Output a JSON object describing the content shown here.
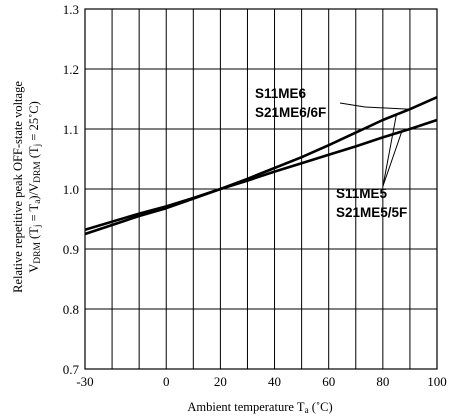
{
  "chart_data": {
    "type": "line",
    "xlim": [
      -30,
      100
    ],
    "ylim": [
      0.7,
      1.3
    ],
    "x_ticks": [
      -30,
      0,
      20,
      40,
      60,
      80,
      100
    ],
    "x_tick_labels": [
      "-30",
      "0",
      "20",
      "40",
      "60",
      "80",
      "100"
    ],
    "y_ticks": [
      0.7,
      0.8,
      0.9,
      1.0,
      1.1,
      1.2,
      1.3
    ],
    "y_tick_labels": [
      "0.7",
      "0.8",
      "0.9",
      "1.0",
      "1.1",
      "1.2",
      "1.3"
    ],
    "grid": true,
    "xlabel": {
      "main": "Ambient temperature T",
      "sub": "a",
      "unit": " (˚C)"
    },
    "ylabel": {
      "line1": "Relative repetitive peak OFF-state voltage",
      "l2_v1": "V",
      "l2_s1": "DRM",
      "l2_p1": " (T",
      "l2_s2": "j",
      "l2_p2": " = T",
      "l2_s3": "a",
      "l2_p3": ")/V",
      "l2_s4": "DRM",
      "l2_p4": " (T",
      "l2_s5": "j",
      "l2_p5": " = 25˚C)"
    },
    "series": [
      {
        "name": "S11ME6 S21ME6/6F",
        "x": [
          -30,
          -10,
          0,
          10,
          20,
          30,
          40,
          50,
          60,
          70,
          80,
          90,
          100
        ],
        "y": [
          0.925,
          0.955,
          0.968,
          0.984,
          1.0,
          1.017,
          1.035,
          1.053,
          1.073,
          1.094,
          1.115,
          1.133,
          1.153
        ]
      },
      {
        "name": "S11ME5 S21ME5/5F",
        "x": [
          -30,
          -10,
          0,
          10,
          20,
          30,
          40,
          50,
          60,
          70,
          80,
          90,
          100
        ],
        "y": [
          0.932,
          0.959,
          0.971,
          0.985,
          1.0,
          1.014,
          1.029,
          1.043,
          1.057,
          1.071,
          1.086,
          1.1,
          1.115
        ]
      }
    ],
    "annotations": [
      {
        "lines": [
          "S11ME6",
          "S21ME6/6F"
        ],
        "series": 0
      },
      {
        "lines": [
          "S11ME5",
          "S21ME5/5F"
        ],
        "series": 1
      }
    ]
  }
}
